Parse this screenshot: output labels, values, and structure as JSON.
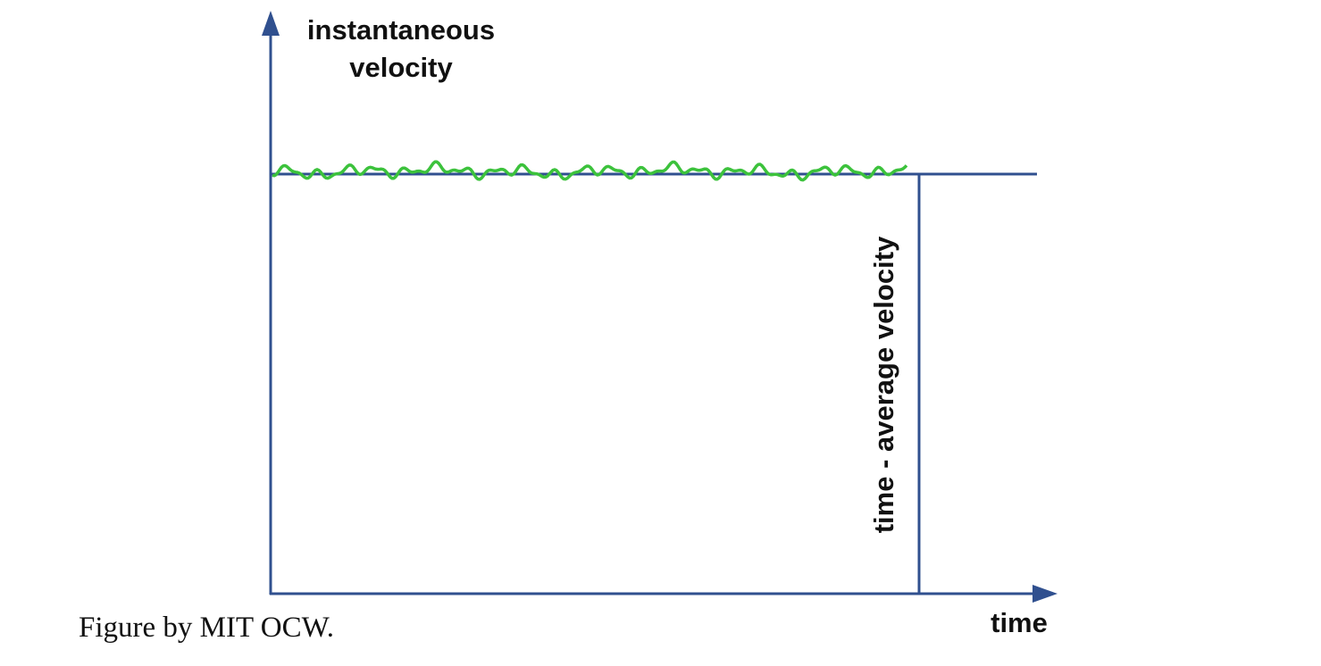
{
  "y_axis_label": [
    "instantaneous",
    "velocity"
  ],
  "average_label": "time - average velocity",
  "x_axis_label": "time",
  "credit": "Figure by MIT OCW."
}
